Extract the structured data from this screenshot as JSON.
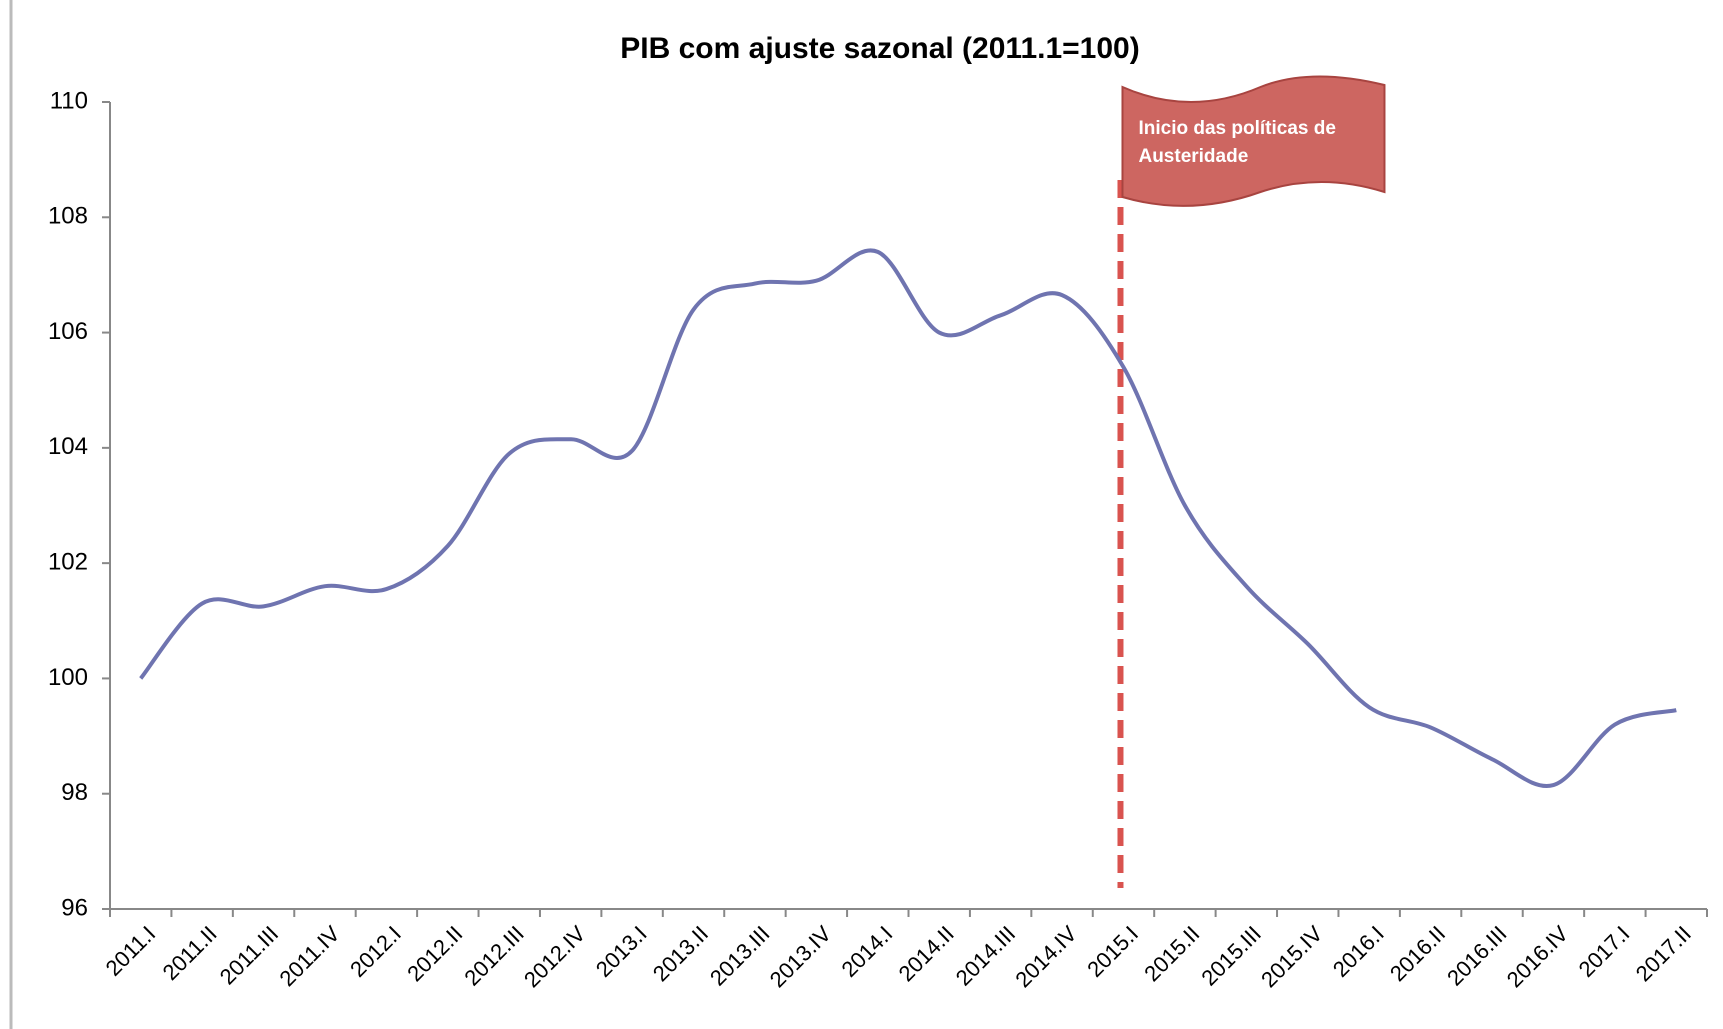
{
  "chart_data": {
    "type": "line",
    "title": "PIB com ajuste sazonal (2011.1=100)",
    "categories": [
      "2011.I",
      "2011.II",
      "2011.III",
      "2011.IV",
      "2012.I",
      "2012.II",
      "2012.III",
      "2012.IV",
      "2013.I",
      "2013.II",
      "2013.III",
      "2013.IV",
      "2014.I",
      "2014.II",
      "2014.III",
      "2014.IV",
      "2015.I",
      "2015.II",
      "2015.III",
      "2015.IV",
      "2016.I",
      "2016.II",
      "2016.III",
      "2016.IV",
      "2017.I",
      "2017.II"
    ],
    "series": [
      {
        "name": "PIB",
        "color": "#6f74b0",
        "values": [
          100.0,
          101.3,
          101.25,
          101.6,
          101.55,
          102.3,
          103.9,
          104.15,
          103.95,
          106.4,
          106.85,
          106.9,
          107.4,
          106.0,
          106.3,
          106.65,
          105.4,
          103.0,
          101.6,
          100.6,
          99.5,
          99.15,
          98.6,
          98.15,
          99.2,
          99.45
        ]
      }
    ],
    "ylim": [
      96,
      110
    ],
    "yticks": [
      96,
      98,
      100,
      102,
      104,
      106,
      108,
      110
    ],
    "annotation_lines": [
      "Inicio das políticas de",
      "Austeridade"
    ]
  }
}
